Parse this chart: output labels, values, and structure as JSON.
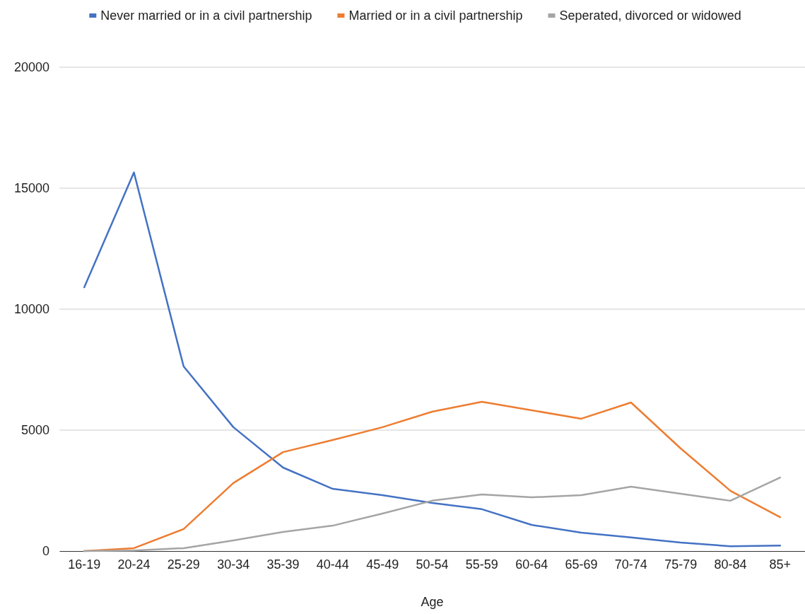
{
  "chart_data": {
    "type": "line",
    "xlabel": "Age",
    "categories": [
      "16-19",
      "20-24",
      "25-29",
      "30-34",
      "35-39",
      "40-44",
      "45-49",
      "50-54",
      "55-59",
      "60-64",
      "65-69",
      "70-74",
      "75-79",
      "80-84",
      "85+"
    ],
    "series": [
      {
        "name": "Never married or in a civil partnership",
        "color": "#4472c4",
        "values": [
          10900,
          15650,
          7630,
          5120,
          3450,
          2570,
          2310,
          1990,
          1730,
          1080,
          760,
          560,
          350,
          200,
          230
        ]
      },
      {
        "name": "Married or in a civil partnership",
        "color": "#ed7d31",
        "values": [
          0,
          120,
          910,
          2810,
          4090,
          4590,
          5120,
          5760,
          6170,
          5820,
          5470,
          6140,
          4240,
          2490,
          1400
        ]
      },
      {
        "name": "Seperated, divorced or widowed",
        "color": "#a5a5a5",
        "values": [
          0,
          20,
          120,
          440,
          790,
          1050,
          1550,
          2080,
          2340,
          2220,
          2310,
          2660,
          2370,
          2080,
          3040
        ]
      }
    ],
    "ylim": [
      0,
      20000
    ],
    "yticks": [
      0,
      5000,
      10000,
      15000,
      20000
    ],
    "grid": "y",
    "legend": "top",
    "marker": "none",
    "line_style": "solid"
  }
}
